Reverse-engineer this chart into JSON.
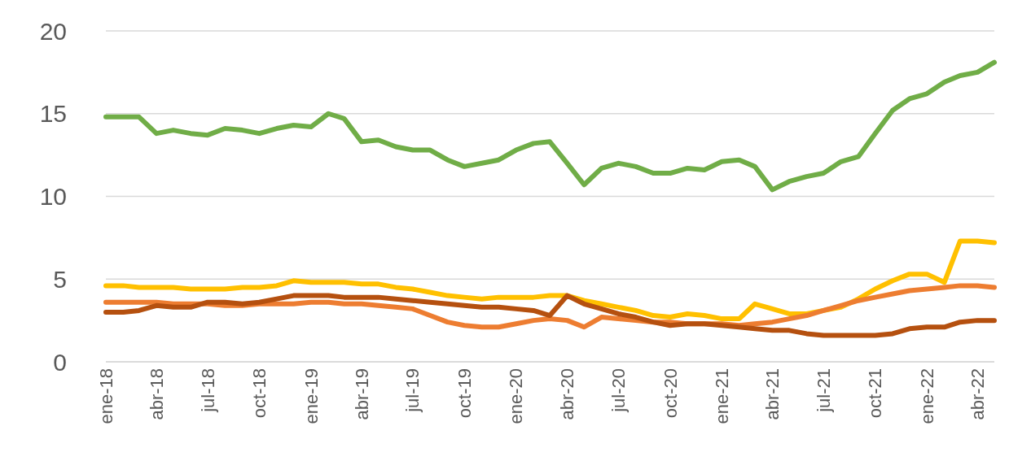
{
  "chart_data": {
    "type": "line",
    "x": [
      "2018-01",
      "2018-02",
      "2018-03",
      "2018-04",
      "2018-05",
      "2018-06",
      "2018-07",
      "2018-08",
      "2018-09",
      "2018-10",
      "2018-11",
      "2018-12",
      "2019-01",
      "2019-02",
      "2019-03",
      "2019-04",
      "2019-05",
      "2019-06",
      "2019-07",
      "2019-08",
      "2019-09",
      "2019-10",
      "2019-11",
      "2019-12",
      "2020-01",
      "2020-02",
      "2020-03",
      "2020-04",
      "2020-05",
      "2020-06",
      "2020-07",
      "2020-08",
      "2020-09",
      "2020-10",
      "2020-11",
      "2020-12",
      "2021-01",
      "2021-02",
      "2021-03",
      "2021-04",
      "2021-05",
      "2021-06",
      "2021-07",
      "2021-08",
      "2021-09",
      "2021-10",
      "2021-11",
      "2021-12",
      "2022-01",
      "2022-02",
      "2022-03",
      "2022-04",
      "2022-05"
    ],
    "series": [
      {
        "color": "#70ad47",
        "values": [
          14.8,
          14.8,
          14.8,
          13.8,
          14.0,
          13.8,
          13.7,
          14.1,
          14.0,
          13.8,
          14.1,
          14.3,
          14.2,
          15.0,
          14.7,
          13.3,
          13.4,
          13.0,
          12.8,
          12.8,
          12.2,
          11.8,
          12.0,
          12.2,
          12.8,
          13.2,
          13.3,
          12.0,
          10.7,
          11.7,
          12.0,
          11.8,
          11.4,
          11.4,
          11.7,
          11.6,
          12.1,
          12.2,
          11.8,
          10.4,
          10.9,
          11.2,
          11.4,
          12.1,
          12.4,
          13.8,
          15.2,
          15.9,
          16.2,
          16.9,
          17.3,
          17.5,
          18.1
        ]
      },
      {
        "color": "#ffc000",
        "values": [
          4.6,
          4.6,
          4.5,
          4.5,
          4.5,
          4.4,
          4.4,
          4.4,
          4.5,
          4.5,
          4.6,
          4.9,
          4.8,
          4.8,
          4.8,
          4.7,
          4.7,
          4.5,
          4.4,
          4.2,
          4.0,
          3.9,
          3.8,
          3.9,
          3.9,
          3.9,
          4.0,
          4.0,
          3.7,
          3.5,
          3.3,
          3.1,
          2.8,
          2.7,
          2.9,
          2.8,
          2.6,
          2.6,
          3.5,
          3.2,
          2.9,
          2.9,
          3.1,
          3.3,
          3.8,
          4.4,
          4.9,
          5.3,
          5.3,
          4.8,
          7.3,
          7.3,
          7.2
        ]
      },
      {
        "color": "#ed7d31",
        "values": [
          3.6,
          3.6,
          3.6,
          3.6,
          3.5,
          3.5,
          3.5,
          3.4,
          3.4,
          3.5,
          3.5,
          3.5,
          3.6,
          3.6,
          3.5,
          3.5,
          3.4,
          3.3,
          3.2,
          2.8,
          2.4,
          2.2,
          2.1,
          2.1,
          2.3,
          2.5,
          2.6,
          2.5,
          2.1,
          2.7,
          2.6,
          2.5,
          2.4,
          2.4,
          2.3,
          2.3,
          2.3,
          2.2,
          2.3,
          2.4,
          2.6,
          2.8,
          3.1,
          3.4,
          3.7,
          3.9,
          4.1,
          4.3,
          4.4,
          4.5,
          4.6,
          4.6,
          4.5
        ]
      },
      {
        "color": "#b5500f",
        "values": [
          3.0,
          3.0,
          3.1,
          3.4,
          3.3,
          3.3,
          3.6,
          3.6,
          3.5,
          3.6,
          3.8,
          4.0,
          4.0,
          4.0,
          3.9,
          3.9,
          3.9,
          3.8,
          3.7,
          3.6,
          3.5,
          3.4,
          3.3,
          3.3,
          3.2,
          3.1,
          2.8,
          4.0,
          3.5,
          3.2,
          2.9,
          2.7,
          2.4,
          2.2,
          2.3,
          2.3,
          2.2,
          2.1,
          2.0,
          1.9,
          1.9,
          1.7,
          1.6,
          1.6,
          1.6,
          1.6,
          1.7,
          2.0,
          2.1,
          2.1,
          2.4,
          2.5,
          2.5
        ]
      }
    ],
    "xlim": [
      "2018-01",
      "2022-05"
    ],
    "xticks": [
      {
        "value": "2018-01",
        "label": "ene-18"
      },
      {
        "value": "2018-04",
        "label": "abr-18"
      },
      {
        "value": "2018-07",
        "label": "jul-18"
      },
      {
        "value": "2018-10",
        "label": "oct-18"
      },
      {
        "value": "2019-01",
        "label": "ene-19"
      },
      {
        "value": "2019-04",
        "label": "abr-19"
      },
      {
        "value": "2019-07",
        "label": "jul-19"
      },
      {
        "value": "2019-10",
        "label": "oct-19"
      },
      {
        "value": "2020-01",
        "label": "ene-20"
      },
      {
        "value": "2020-04",
        "label": "abr-20"
      },
      {
        "value": "2020-07",
        "label": "jul-20"
      },
      {
        "value": "2020-10",
        "label": "oct-20"
      },
      {
        "value": "2021-01",
        "label": "ene-21"
      },
      {
        "value": "2021-04",
        "label": "abr-21"
      },
      {
        "value": "2021-07",
        "label": "jul-21"
      },
      {
        "value": "2021-10",
        "label": "oct-21"
      },
      {
        "value": "2022-01",
        "label": "ene-22"
      },
      {
        "value": "2022-04",
        "label": "abr-22"
      }
    ],
    "ylim": [
      0,
      20
    ],
    "yticks": [
      0,
      5,
      10,
      15,
      20
    ],
    "grid": "y",
    "line_style": "solid",
    "marker": "none"
  }
}
